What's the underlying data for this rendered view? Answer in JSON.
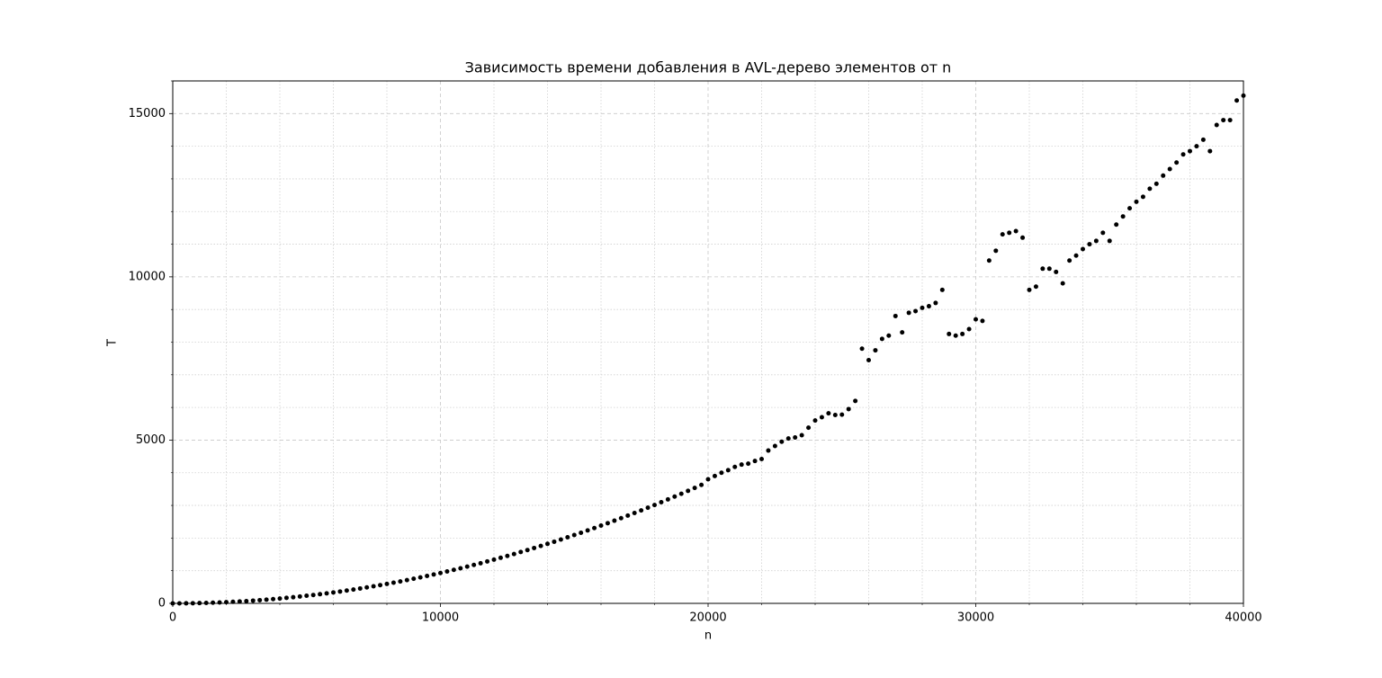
{
  "chart_data": {
    "type": "scatter",
    "title": "Зависимость времени добавления в AVL-дерево элементов от n",
    "x_label": "n",
    "y_label": "T",
    "color": "#000000",
    "grid": true,
    "xlim": [
      0,
      40000
    ],
    "xticks": [
      0,
      10000,
      20000,
      30000,
      40000
    ],
    "xminorticks": [
      2000,
      4000,
      6000,
      8000,
      12000,
      14000,
      16000,
      18000,
      22000,
      24000,
      26000,
      28000,
      32000,
      34000,
      36000,
      38000
    ],
    "ylim": [
      0,
      16000
    ],
    "yticks": [
      0,
      5000,
      10000,
      15000
    ],
    "yminorticks": [
      1000,
      2000,
      3000,
      4000,
      6000,
      7000,
      8000,
      9000,
      11000,
      12000,
      13000,
      14000,
      16000
    ],
    "x": [
      0,
      250,
      500,
      750,
      1000,
      1250,
      1500,
      1750,
      2000,
      2250,
      2500,
      2750,
      3000,
      3250,
      3500,
      3750,
      4000,
      4250,
      4500,
      4750,
      5000,
      5250,
      5500,
      5750,
      6000,
      6250,
      6500,
      6750,
      7000,
      7250,
      7500,
      7750,
      8000,
      8250,
      8500,
      8750,
      9000,
      9250,
      9500,
      9750,
      10000,
      10250,
      10500,
      10750,
      11000,
      11250,
      11500,
      11750,
      12000,
      12250,
      12500,
      12750,
      13000,
      13250,
      13500,
      13750,
      14000,
      14250,
      14500,
      14750,
      15000,
      15250,
      15500,
      15750,
      16000,
      16250,
      16500,
      16750,
      17000,
      17250,
      17500,
      17750,
      18000,
      18250,
      18500,
      18750,
      19000,
      19250,
      19500,
      19750,
      20000,
      20250,
      20500,
      20750,
      21000,
      21250,
      21500,
      21750,
      22000,
      22250,
      22500,
      22750,
      23000,
      23250,
      23500,
      23750,
      24000,
      24250,
      24500,
      24750,
      25000,
      25250,
      25500,
      25750,
      26000,
      26250,
      26500,
      26750,
      27000,
      27250,
      27500,
      27750,
      28000,
      28250,
      28500,
      28750,
      29000,
      29250,
      29500,
      29750,
      30000,
      30250,
      30500,
      30750,
      31000,
      31250,
      31500,
      31750,
      32000,
      32250,
      32500,
      32750,
      33000,
      33250,
      33500,
      33750,
      34000,
      34250,
      34500,
      34750,
      35000,
      35250,
      35500,
      35750,
      36000,
      36250,
      36500,
      36750,
      37000,
      37250,
      37500,
      37750,
      38000,
      38250,
      38500,
      38750,
      39000,
      39250,
      39500,
      39750,
      40000
    ],
    "values": [
      0,
      1,
      2,
      5,
      9,
      15,
      21,
      28,
      37,
      47,
      58,
      70,
      84,
      98,
      114,
      131,
      149,
      168,
      188,
      210,
      233,
      256,
      281,
      307,
      335,
      363,
      393,
      424,
      456,
      489,
      523,
      559,
      595,
      633,
      672,
      712,
      753,
      796,
      839,
      884,
      930,
      977,
      1025,
      1075,
      1125,
      1177,
      1230,
      1284,
      1339,
      1396,
      1453,
      1512,
      1572,
      1633,
      1695,
      1758,
      1823,
      1888,
      1955,
      2023,
      2093,
      2163,
      2234,
      2307,
      2381,
      2456,
      2532,
      2609,
      2688,
      2767,
      2848,
      2930,
      3013,
      3097,
      3183,
      3270,
      3357,
      3446,
      3536,
      3628,
      3800,
      3900,
      4000,
      4080,
      4180,
      4250,
      4280,
      4360,
      4420,
      4680,
      4820,
      4950,
      5050,
      5080,
      5150,
      5380,
      5600,
      5700,
      5820,
      5770,
      5780,
      5950,
      6200,
      7800,
      7450,
      7750,
      8100,
      8200,
      8800,
      8300,
      8900,
      8950,
      9050,
      9100,
      9200,
      9600,
      8250,
      8200,
      8250,
      8400,
      8700,
      8650,
      10500,
      10800,
      11300,
      11350,
      11400,
      11200,
      9600,
      9700,
      10250,
      10250,
      10150,
      9800,
      10500,
      10650,
      10850,
      11000,
      11100,
      11350,
      11100,
      11600,
      11850,
      12100,
      12300,
      12450,
      12700,
      12850,
      13100,
      13300,
      13500,
      13750,
      13850,
      14000,
      14200,
      13850,
      14650,
      14800,
      14800,
      15400,
      15550
    ]
  }
}
